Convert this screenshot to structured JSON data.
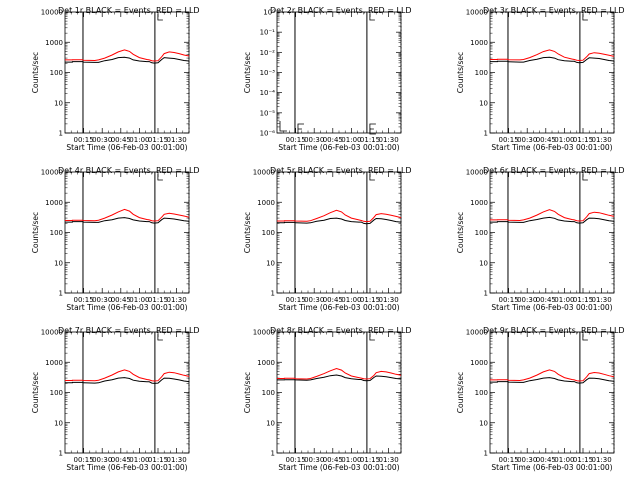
{
  "figure": {
    "background": "#ffffff",
    "axis_color": "#000000"
  },
  "x_tick_labels": [
    "00:15",
    "00:30",
    "00:45",
    "01:00",
    "01:15",
    "01:30"
  ],
  "x_label": "Start Time (06-Feb-03 00:01:00)",
  "y_label": "Counts/sec",
  "series_colors": {
    "Events": "#000000",
    "LLD": "#ff0000"
  },
  "chart_data": [
    {
      "type": "line",
      "title": "Det 1r  BLACK = Events, RED = LLD",
      "yscale": "log",
      "ylim": [
        1,
        10000
      ],
      "y_tick_labels": [
        "1",
        "10",
        "100",
        "1000",
        "10000"
      ],
      "x_ticks_minutes": [
        15,
        30,
        45,
        60,
        75,
        90
      ],
      "xlim_minutes": [
        0,
        100
      ],
      "series": [
        {
          "name": "Events",
          "x": [
            0,
            6,
            6,
            14,
            15,
            24,
            27,
            32,
            38,
            43,
            48,
            52,
            55,
            60,
            66,
            68,
            70,
            72,
            75,
            78,
            80,
            84,
            88,
            92,
            96,
            100
          ],
          "y": [
            220,
            220,
            230,
            230,
            220,
            215,
            215,
            245,
            270,
            310,
            320,
            300,
            260,
            240,
            230,
            230,
            210,
            205,
            210,
            270,
            310,
            300,
            290,
            270,
            250,
            240
          ]
        },
        {
          "name": "LLD",
          "x": [
            0,
            6,
            6,
            14,
            15,
            24,
            27,
            32,
            38,
            43,
            48,
            52,
            55,
            60,
            66,
            68,
            70,
            72,
            75,
            78,
            80,
            84,
            88,
            92,
            96,
            100
          ],
          "y": [
            260,
            260,
            265,
            265,
            255,
            250,
            260,
            300,
            380,
            480,
            560,
            500,
            400,
            310,
            270,
            260,
            245,
            240,
            245,
            330,
            420,
            480,
            460,
            420,
            380,
            350
          ]
        }
      ]
    },
    {
      "type": "line",
      "title": "Det 2r  BLACK = Events, RED = LLD",
      "yscale": "log",
      "ylim": [
        1,
        1e-06
      ],
      "y_tick_labels": [
        "10⁰",
        "10⁻¹",
        "10⁻²",
        "10⁻³",
        "10⁻⁴",
        "10⁻⁵",
        "10⁻⁶"
      ],
      "x_ticks_minutes": [
        15,
        30,
        45,
        60,
        75,
        90
      ],
      "xlim_minutes": [
        0,
        100
      ],
      "series": []
    },
    {
      "type": "line",
      "title": "Det 3r  BLACK = Events, RED = LLD",
      "yscale": "log",
      "ylim": [
        1,
        10000
      ],
      "y_tick_labels": [
        "1",
        "10",
        "100",
        "1000",
        "10000"
      ],
      "x_ticks_minutes": [
        15,
        30,
        45,
        60,
        75,
        90
      ],
      "xlim_minutes": [
        0,
        100
      ],
      "series": [
        {
          "name": "Events",
          "x": [
            0,
            6,
            6,
            14,
            15,
            24,
            27,
            32,
            38,
            43,
            48,
            52,
            55,
            60,
            66,
            68,
            70,
            72,
            75,
            78,
            80,
            84,
            88,
            92,
            96,
            100
          ],
          "y": [
            230,
            230,
            235,
            235,
            225,
            220,
            220,
            250,
            275,
            310,
            320,
            300,
            265,
            245,
            235,
            235,
            215,
            210,
            215,
            270,
            305,
            300,
            290,
            270,
            250,
            240
          ]
        },
        {
          "name": "LLD",
          "x": [
            0,
            6,
            6,
            14,
            15,
            24,
            27,
            32,
            38,
            43,
            48,
            52,
            55,
            60,
            66,
            68,
            70,
            72,
            75,
            78,
            80,
            84,
            88,
            92,
            96,
            100
          ],
          "y": [
            270,
            270,
            275,
            275,
            265,
            260,
            270,
            310,
            390,
            490,
            560,
            500,
            410,
            320,
            280,
            270,
            255,
            250,
            255,
            330,
            410,
            450,
            430,
            400,
            370,
            340
          ]
        }
      ]
    },
    {
      "type": "line",
      "title": "Det 4r  BLACK = Events, RED = LLD",
      "yscale": "log",
      "ylim": [
        1,
        10000
      ],
      "y_tick_labels": [
        "1",
        "10",
        "100",
        "1000",
        "10000"
      ],
      "x_ticks_minutes": [
        15,
        30,
        45,
        60,
        75,
        90
      ],
      "xlim_minutes": [
        0,
        100
      ],
      "series": [
        {
          "name": "Events",
          "x": [
            0,
            6,
            6,
            14,
            15,
            24,
            27,
            32,
            38,
            43,
            48,
            52,
            55,
            60,
            66,
            68,
            70,
            72,
            75,
            78,
            80,
            84,
            88,
            92,
            96,
            100
          ],
          "y": [
            220,
            220,
            230,
            230,
            220,
            215,
            215,
            245,
            265,
            300,
            310,
            290,
            260,
            240,
            230,
            230,
            210,
            205,
            210,
            265,
            300,
            290,
            280,
            260,
            245,
            235
          ]
        },
        {
          "name": "LLD",
          "x": [
            0,
            6,
            6,
            14,
            15,
            24,
            27,
            32,
            38,
            43,
            48,
            52,
            55,
            60,
            66,
            68,
            70,
            72,
            75,
            78,
            80,
            84,
            88,
            92,
            96,
            100
          ],
          "y": [
            250,
            250,
            255,
            255,
            250,
            245,
            255,
            300,
            380,
            480,
            580,
            510,
            400,
            310,
            270,
            260,
            245,
            240,
            245,
            320,
            400,
            430,
            410,
            380,
            350,
            320
          ]
        }
      ]
    },
    {
      "type": "line",
      "title": "Det 5r  BLACK = Events, RED = LLD",
      "yscale": "log",
      "ylim": [
        1,
        10000
      ],
      "y_tick_labels": [
        "1",
        "10",
        "100",
        "1000",
        "10000"
      ],
      "x_ticks_minutes": [
        15,
        30,
        45,
        60,
        75,
        90
      ],
      "xlim_minutes": [
        0,
        100
      ],
      "series": [
        {
          "name": "Events",
          "x": [
            0,
            6,
            6,
            14,
            15,
            24,
            27,
            32,
            38,
            43,
            48,
            52,
            55,
            60,
            66,
            68,
            70,
            72,
            75,
            78,
            80,
            84,
            88,
            92,
            96,
            100
          ],
          "y": [
            210,
            210,
            215,
            215,
            210,
            205,
            210,
            235,
            255,
            290,
            300,
            280,
            250,
            230,
            220,
            220,
            200,
            195,
            200,
            255,
            290,
            285,
            270,
            250,
            230,
            220
          ]
        },
        {
          "name": "LLD",
          "x": [
            0,
            6,
            6,
            14,
            15,
            24,
            27,
            32,
            38,
            43,
            48,
            52,
            55,
            60,
            66,
            68,
            70,
            72,
            75,
            78,
            80,
            84,
            88,
            92,
            96,
            100
          ],
          "y": [
            240,
            240,
            245,
            245,
            240,
            235,
            245,
            290,
            360,
            450,
            540,
            480,
            380,
            300,
            260,
            250,
            235,
            230,
            235,
            310,
            390,
            420,
            400,
            370,
            340,
            310
          ]
        }
      ]
    },
    {
      "type": "line",
      "title": "Det 6r  BLACK = Events, RED = LLD",
      "yscale": "log",
      "ylim": [
        1,
        10000
      ],
      "y_tick_labels": [
        "1",
        "10",
        "100",
        "1000",
        "10000"
      ],
      "x_ticks_minutes": [
        15,
        30,
        45,
        60,
        75,
        90
      ],
      "xlim_minutes": [
        0,
        100
      ],
      "series": [
        {
          "name": "Events",
          "x": [
            0,
            6,
            6,
            14,
            15,
            24,
            27,
            32,
            38,
            43,
            48,
            52,
            55,
            60,
            66,
            68,
            70,
            72,
            75,
            78,
            80,
            84,
            88,
            92,
            96,
            100
          ],
          "y": [
            220,
            220,
            230,
            230,
            220,
            215,
            215,
            245,
            270,
            300,
            315,
            295,
            260,
            240,
            230,
            230,
            210,
            205,
            210,
            265,
            300,
            295,
            285,
            265,
            245,
            235
          ]
        },
        {
          "name": "LLD",
          "x": [
            0,
            6,
            6,
            14,
            15,
            24,
            27,
            32,
            38,
            43,
            48,
            52,
            55,
            60,
            66,
            68,
            70,
            72,
            75,
            78,
            80,
            84,
            88,
            92,
            96,
            100
          ],
          "y": [
            260,
            260,
            265,
            265,
            255,
            250,
            260,
            300,
            380,
            480,
            570,
            500,
            400,
            310,
            270,
            260,
            245,
            240,
            245,
            330,
            420,
            470,
            450,
            410,
            370,
            340
          ]
        }
      ]
    },
    {
      "type": "line",
      "title": "Det 7r  BLACK = Events, RED = LLD",
      "yscale": "log",
      "ylim": [
        1,
        10000
      ],
      "y_tick_labels": [
        "1",
        "10",
        "100",
        "1000",
        "10000"
      ],
      "x_ticks_minutes": [
        15,
        30,
        45,
        60,
        75,
        90
      ],
      "xlim_minutes": [
        0,
        100
      ],
      "series": [
        {
          "name": "Events",
          "x": [
            0,
            6,
            6,
            14,
            15,
            24,
            27,
            32,
            38,
            43,
            48,
            52,
            55,
            60,
            66,
            68,
            70,
            72,
            75,
            78,
            80,
            84,
            88,
            92,
            96,
            100
          ],
          "y": [
            210,
            210,
            215,
            215,
            210,
            205,
            210,
            240,
            265,
            300,
            310,
            290,
            255,
            235,
            225,
            225,
            205,
            200,
            205,
            260,
            300,
            295,
            280,
            260,
            240,
            230
          ]
        },
        {
          "name": "LLD",
          "x": [
            0,
            6,
            6,
            14,
            15,
            24,
            27,
            32,
            38,
            43,
            48,
            52,
            55,
            60,
            66,
            68,
            70,
            72,
            75,
            78,
            80,
            84,
            88,
            92,
            96,
            100
          ],
          "y": [
            250,
            250,
            255,
            255,
            250,
            245,
            255,
            300,
            380,
            480,
            560,
            500,
            400,
            310,
            270,
            260,
            245,
            240,
            245,
            330,
            420,
            470,
            450,
            410,
            370,
            340
          ]
        }
      ]
    },
    {
      "type": "line",
      "title": "Det 8r  BLACK = Events, RED = LLD",
      "yscale": "log",
      "ylim": [
        1,
        10000
      ],
      "y_tick_labels": [
        "1",
        "10",
        "100",
        "1000",
        "10000"
      ],
      "x_ticks_minutes": [
        15,
        30,
        45,
        60,
        75,
        90
      ],
      "xlim_minutes": [
        0,
        100
      ],
      "series": [
        {
          "name": "Events",
          "x": [
            0,
            6,
            6,
            14,
            15,
            24,
            27,
            32,
            38,
            43,
            48,
            52,
            55,
            60,
            66,
            68,
            70,
            72,
            75,
            78,
            80,
            84,
            88,
            92,
            96,
            100
          ],
          "y": [
            260,
            260,
            265,
            265,
            260,
            255,
            260,
            290,
            320,
            360,
            380,
            350,
            310,
            285,
            270,
            270,
            250,
            245,
            250,
            310,
            350,
            345,
            330,
            310,
            290,
            280
          ]
        },
        {
          "name": "LLD",
          "x": [
            0,
            6,
            6,
            14,
            15,
            24,
            27,
            32,
            38,
            43,
            48,
            52,
            55,
            60,
            66,
            68,
            70,
            72,
            75,
            78,
            80,
            84,
            88,
            92,
            96,
            100
          ],
          "y": [
            290,
            290,
            295,
            295,
            285,
            280,
            290,
            340,
            420,
            520,
            620,
            550,
            440,
            350,
            310,
            300,
            285,
            280,
            285,
            360,
            450,
            500,
            480,
            440,
            400,
            370
          ]
        }
      ]
    },
    {
      "type": "line",
      "title": "Det 9r  BLACK = Events, RED = LLD",
      "yscale": "log",
      "ylim": [
        1,
        10000
      ],
      "y_tick_labels": [
        "1",
        "10",
        "100",
        "1000",
        "10000"
      ],
      "x_ticks_minutes": [
        15,
        30,
        45,
        60,
        75,
        90
      ],
      "xlim_minutes": [
        0,
        100
      ],
      "series": [
        {
          "name": "Events",
          "x": [
            0,
            6,
            6,
            14,
            15,
            24,
            27,
            32,
            38,
            43,
            48,
            52,
            55,
            60,
            66,
            68,
            70,
            72,
            75,
            78,
            80,
            84,
            88,
            92,
            96,
            100
          ],
          "y": [
            220,
            220,
            230,
            230,
            220,
            215,
            215,
            245,
            270,
            300,
            310,
            290,
            260,
            240,
            230,
            230,
            210,
            205,
            210,
            265,
            300,
            295,
            285,
            265,
            245,
            235
          ]
        },
        {
          "name": "LLD",
          "x": [
            0,
            6,
            6,
            14,
            15,
            24,
            27,
            32,
            38,
            43,
            48,
            52,
            55,
            60,
            66,
            68,
            70,
            72,
            75,
            78,
            80,
            84,
            88,
            92,
            96,
            100
          ],
          "y": [
            260,
            260,
            265,
            265,
            255,
            250,
            260,
            300,
            380,
            480,
            560,
            500,
            400,
            310,
            270,
            260,
            245,
            240,
            245,
            330,
            420,
            460,
            440,
            400,
            360,
            330
          ]
        }
      ]
    }
  ]
}
